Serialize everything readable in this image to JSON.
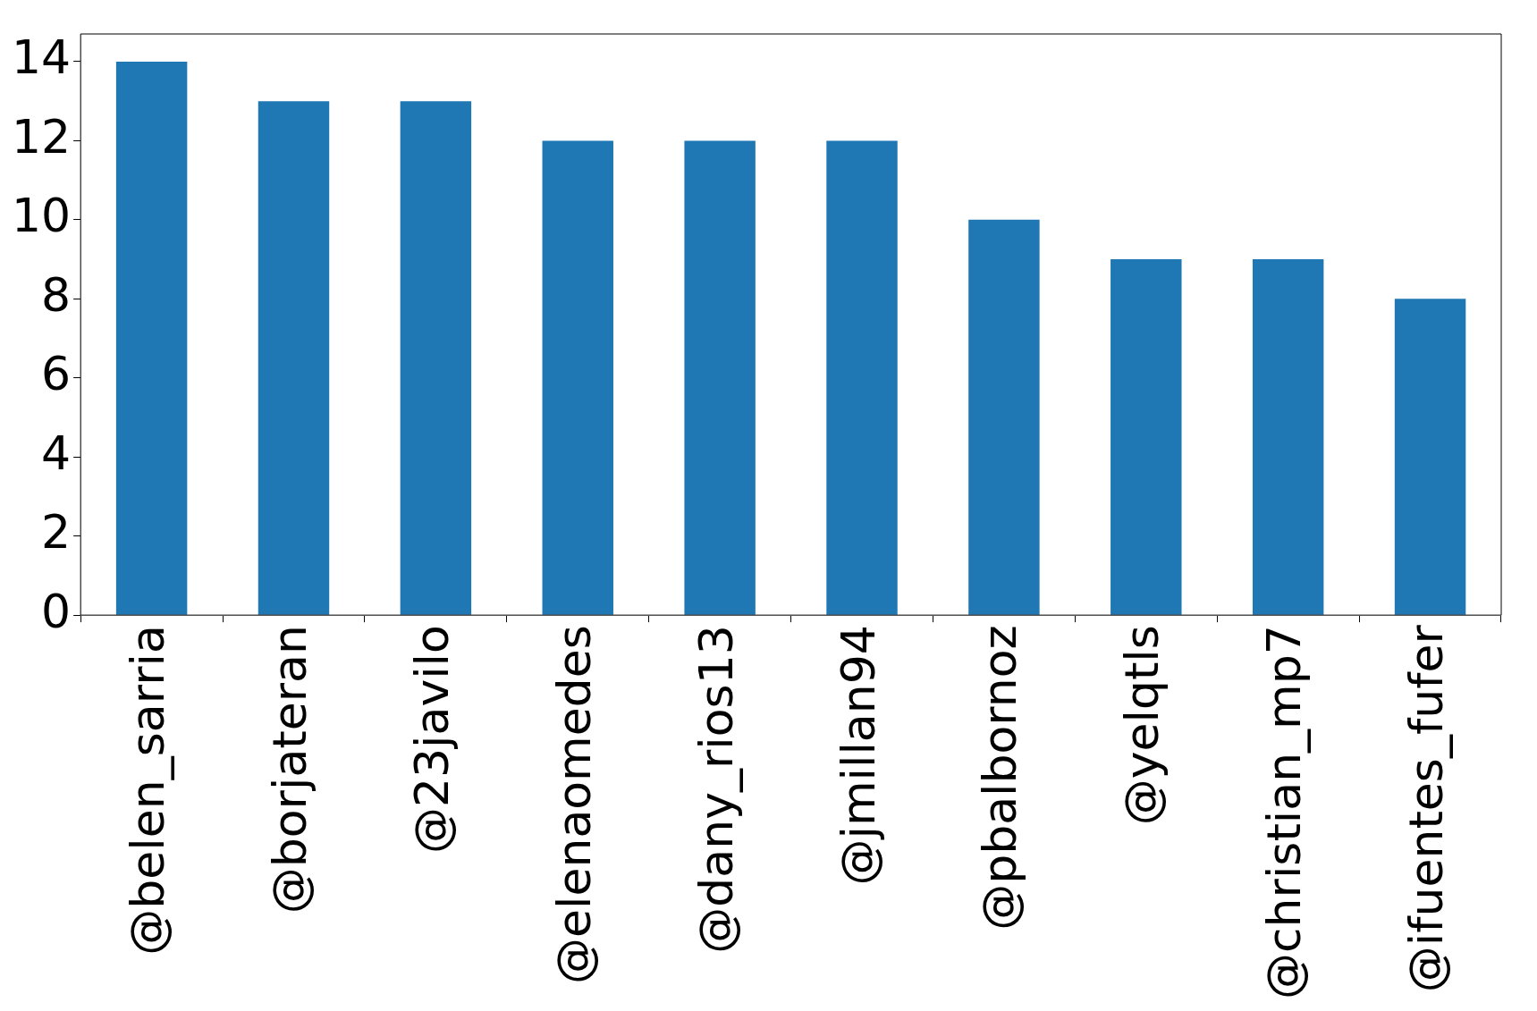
{
  "chart_data": {
    "type": "bar",
    "categories": [
      "@belen_sarria",
      "@borjateran",
      "@23javilo",
      "@elenaomedes",
      "@dany_rios13",
      "@jmillan94",
      "@pbalbornoz",
      "@yelqtls",
      "@christian_mp7",
      "@ifuentes_fufer"
    ],
    "values": [
      14,
      13,
      13,
      12,
      12,
      12,
      10,
      9,
      9,
      8
    ],
    "color": "#1f77b4",
    "ylim": [
      0,
      14.7
    ],
    "yticks": [
      0,
      2,
      4,
      6,
      8,
      10,
      12,
      14
    ],
    "grid": false,
    "legend": false
  }
}
